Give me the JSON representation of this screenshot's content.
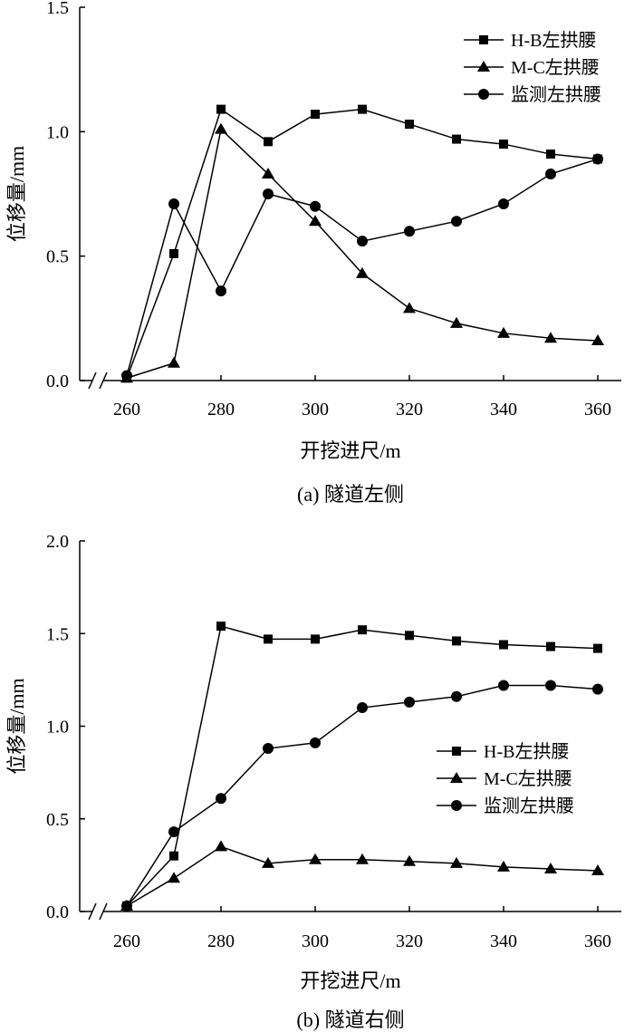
{
  "chart_data": [
    {
      "type": "line",
      "caption": "(a) 隧道左侧",
      "xlabel": "开挖进尺/m",
      "ylabel": "位移量/mm",
      "xlim": [
        250,
        365
      ],
      "ylim": [
        0,
        1.5
      ],
      "x_ticks": [
        260,
        280,
        300,
        320,
        340,
        360
      ],
      "x_tick_labels": [
        "260",
        "280",
        "300",
        "320",
        "340",
        "360"
      ],
      "y_ticks": [
        0,
        0.5,
        1.0,
        1.5
      ],
      "y_tick_labels": [
        "0.0",
        "0.5",
        "1.0",
        "1.5"
      ],
      "axis_break": true,
      "legend_position": "top-right",
      "x": [
        260,
        270,
        280,
        290,
        300,
        310,
        320,
        330,
        340,
        350,
        360
      ],
      "series": [
        {
          "name": "H-B左拱腰",
          "marker": "square",
          "values": [
            0.01,
            0.51,
            1.09,
            0.96,
            1.07,
            1.09,
            1.03,
            0.97,
            0.95,
            0.91,
            0.89
          ]
        },
        {
          "name": "M-C左拱腰",
          "marker": "triangle",
          "values": [
            0.01,
            0.07,
            1.01,
            0.83,
            0.64,
            0.43,
            0.29,
            0.23,
            0.19,
            0.17,
            0.16
          ]
        },
        {
          "name": "监测左拱腰",
          "marker": "circle",
          "values": [
            0.02,
            0.71,
            0.36,
            0.75,
            0.7,
            0.56,
            0.6,
            0.64,
            0.71,
            0.83,
            0.89
          ]
        }
      ]
    },
    {
      "type": "line",
      "caption": "(b) 隧道右侧",
      "xlabel": "开挖进尺/m",
      "ylabel": "位移量/mm",
      "xlim": [
        250,
        365
      ],
      "ylim": [
        0,
        2.0
      ],
      "x_ticks": [
        260,
        280,
        300,
        320,
        340,
        360
      ],
      "x_tick_labels": [
        "260",
        "280",
        "300",
        "320",
        "340",
        "360"
      ],
      "y_ticks": [
        0,
        0.5,
        1.0,
        1.5,
        2.0
      ],
      "y_tick_labels": [
        "0.0",
        "0.5",
        "1.0",
        "1.5",
        "2.0"
      ],
      "axis_break": true,
      "legend_position": "middle-right",
      "x": [
        260,
        270,
        280,
        290,
        300,
        310,
        320,
        330,
        340,
        350,
        360
      ],
      "series": [
        {
          "name": "H-B左拱腰",
          "marker": "square",
          "values": [
            0.03,
            0.3,
            1.54,
            1.47,
            1.47,
            1.52,
            1.49,
            1.46,
            1.44,
            1.43,
            1.42
          ]
        },
        {
          "name": "M-C左拱腰",
          "marker": "triangle",
          "values": [
            0.03,
            0.18,
            0.35,
            0.26,
            0.28,
            0.28,
            0.27,
            0.26,
            0.24,
            0.23,
            0.22
          ]
        },
        {
          "name": "监测左拱腰",
          "marker": "circle",
          "values": [
            0.03,
            0.43,
            0.61,
            0.88,
            0.91,
            1.1,
            1.13,
            1.16,
            1.22,
            1.22,
            1.2
          ]
        }
      ]
    }
  ]
}
